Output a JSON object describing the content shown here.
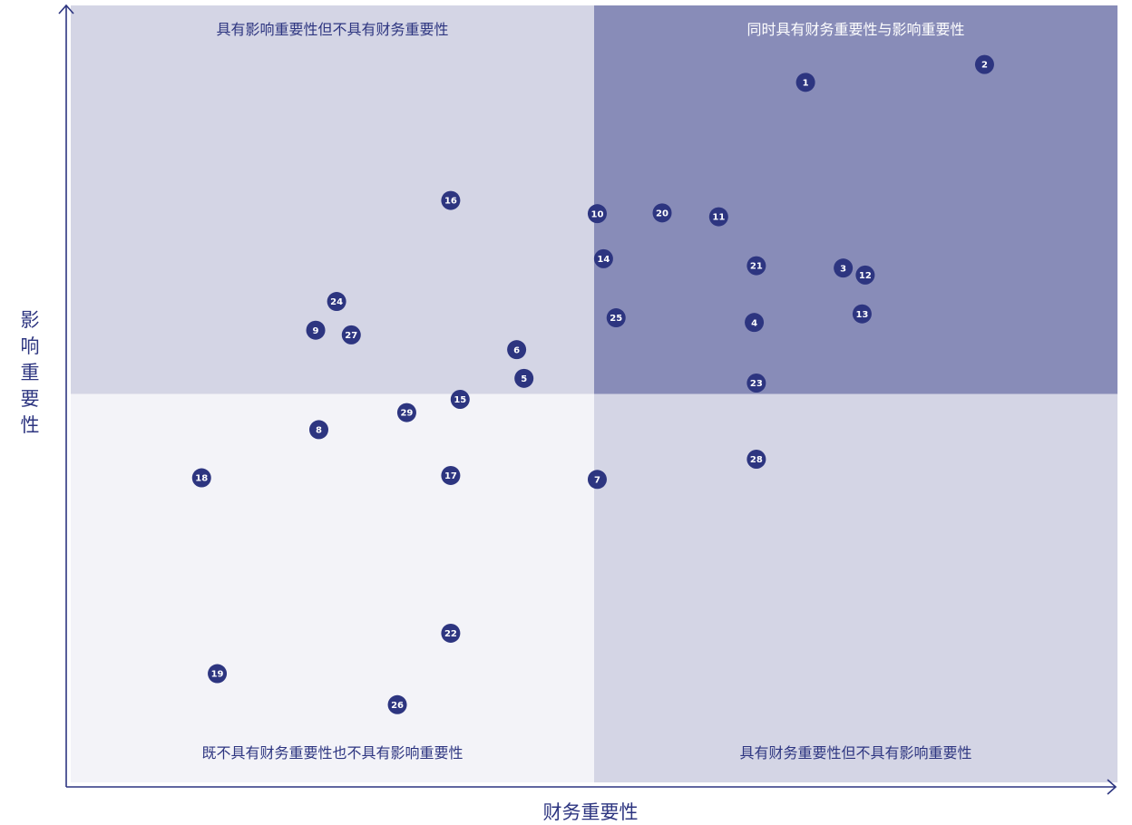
{
  "chart_data": {
    "type": "scatter",
    "xlabel": "财务重要性",
    "ylabel": "影响重要性",
    "xlim": [
      0,
      100
    ],
    "ylim": [
      0,
      100
    ],
    "threshold": {
      "x": 50,
      "y": 50
    },
    "grid": false,
    "quadrants": {
      "top_left": {
        "label": "具有影响重要性但不具有财务重要性",
        "fill": "#d4d5e5",
        "text_color": "#2d3580"
      },
      "top_right": {
        "label": "同时具有财务重要性与影响重要性",
        "fill": "#888cb8",
        "text_color": "#ffffff"
      },
      "bottom_left": {
        "label": "既不具有财务重要性也不具有影响重要性",
        "fill": "#f3f3f8",
        "text_color": "#2d3580"
      },
      "bottom_right": {
        "label": "具有财务重要性但不具有影响重要性",
        "fill": "#d4d5e5",
        "text_color": "#2d3580"
      }
    },
    "colors": {
      "axis": "#2d3580",
      "marker": "#2d3580",
      "marker_text": "#ffffff"
    },
    "points": [
      {
        "id": "1",
        "x": 70.2,
        "y": 90.1
      },
      {
        "id": "2",
        "x": 87.3,
        "y": 92.4
      },
      {
        "id": "3",
        "x": 73.8,
        "y": 66.2
      },
      {
        "id": "4",
        "x": 65.3,
        "y": 59.2
      },
      {
        "id": "5",
        "x": 43.3,
        "y": 52.0
      },
      {
        "id": "6",
        "x": 42.6,
        "y": 55.7
      },
      {
        "id": "7",
        "x": 50.3,
        "y": 39.0
      },
      {
        "id": "8",
        "x": 23.7,
        "y": 45.4
      },
      {
        "id": "9",
        "x": 23.4,
        "y": 58.2
      },
      {
        "id": "10",
        "x": 50.3,
        "y": 73.2
      },
      {
        "id": "11",
        "x": 61.9,
        "y": 72.8
      },
      {
        "id": "12",
        "x": 75.9,
        "y": 65.3
      },
      {
        "id": "13",
        "x": 75.6,
        "y": 60.3
      },
      {
        "id": "14",
        "x": 50.9,
        "y": 67.4
      },
      {
        "id": "15",
        "x": 37.2,
        "y": 49.3
      },
      {
        "id": "16",
        "x": 36.3,
        "y": 74.9
      },
      {
        "id": "17",
        "x": 36.3,
        "y": 39.5
      },
      {
        "id": "18",
        "x": 12.5,
        "y": 39.2
      },
      {
        "id": "19",
        "x": 14.0,
        "y": 14.0
      },
      {
        "id": "20",
        "x": 56.5,
        "y": 73.3
      },
      {
        "id": "21",
        "x": 65.5,
        "y": 66.5
      },
      {
        "id": "22",
        "x": 36.3,
        "y": 19.2
      },
      {
        "id": "23",
        "x": 65.5,
        "y": 51.4
      },
      {
        "id": "24",
        "x": 25.4,
        "y": 61.9
      },
      {
        "id": "25",
        "x": 52.1,
        "y": 59.8
      },
      {
        "id": "26",
        "x": 31.2,
        "y": 10.0
      },
      {
        "id": "27",
        "x": 26.8,
        "y": 57.6
      },
      {
        "id": "28",
        "x": 65.5,
        "y": 41.6
      },
      {
        "id": "29",
        "x": 32.1,
        "y": 47.6
      }
    ]
  }
}
